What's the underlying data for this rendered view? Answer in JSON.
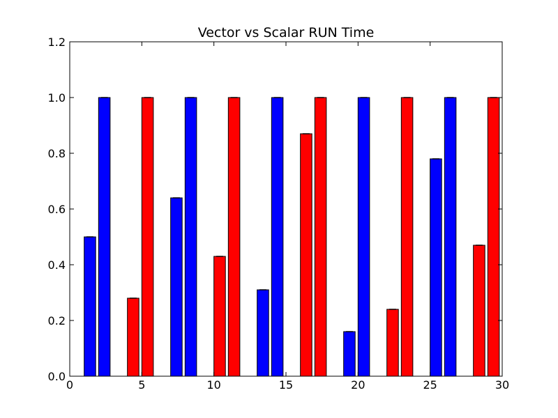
{
  "chart_data": {
    "type": "bar",
    "title": "Vector vs Scalar RUN Time",
    "xlabel": "",
    "ylabel": "",
    "xlim": [
      0,
      30
    ],
    "ylim": [
      0,
      1.2
    ],
    "xticks": [
      0,
      5,
      10,
      15,
      20,
      25,
      30
    ],
    "xtick_labels": [
      "0",
      "5",
      "10",
      "15",
      "20",
      "25",
      "30"
    ],
    "yticks": [
      0.0,
      0.2,
      0.4,
      0.6,
      0.8,
      1.0,
      1.2
    ],
    "ytick_labels": [
      "0.0",
      "0.2",
      "0.4",
      "0.6",
      "0.8",
      "1.0",
      "1.2"
    ],
    "grid": false,
    "bar_width": 0.8,
    "colors": {
      "blue": "#0000ff",
      "red": "#ff0000"
    },
    "bars": [
      {
        "x": 1.0,
        "value": 0.5,
        "color": "blue"
      },
      {
        "x": 2.0,
        "value": 1.0,
        "color": "blue"
      },
      {
        "x": 4.0,
        "value": 0.28,
        "color": "red"
      },
      {
        "x": 5.0,
        "value": 1.0,
        "color": "red"
      },
      {
        "x": 7.0,
        "value": 0.64,
        "color": "blue"
      },
      {
        "x": 8.0,
        "value": 1.0,
        "color": "blue"
      },
      {
        "x": 10.0,
        "value": 0.43,
        "color": "red"
      },
      {
        "x": 11.0,
        "value": 1.0,
        "color": "red"
      },
      {
        "x": 13.0,
        "value": 0.31,
        "color": "blue"
      },
      {
        "x": 14.0,
        "value": 1.0,
        "color": "blue"
      },
      {
        "x": 16.0,
        "value": 0.87,
        "color": "red"
      },
      {
        "x": 17.0,
        "value": 1.0,
        "color": "red"
      },
      {
        "x": 19.0,
        "value": 0.16,
        "color": "blue"
      },
      {
        "x": 20.0,
        "value": 1.0,
        "color": "blue"
      },
      {
        "x": 22.0,
        "value": 0.24,
        "color": "red"
      },
      {
        "x": 23.0,
        "value": 1.0,
        "color": "red"
      },
      {
        "x": 25.0,
        "value": 0.78,
        "color": "blue"
      },
      {
        "x": 26.0,
        "value": 1.0,
        "color": "blue"
      },
      {
        "x": 28.0,
        "value": 0.47,
        "color": "red"
      },
      {
        "x": 29.0,
        "value": 1.0,
        "color": "red"
      }
    ]
  }
}
